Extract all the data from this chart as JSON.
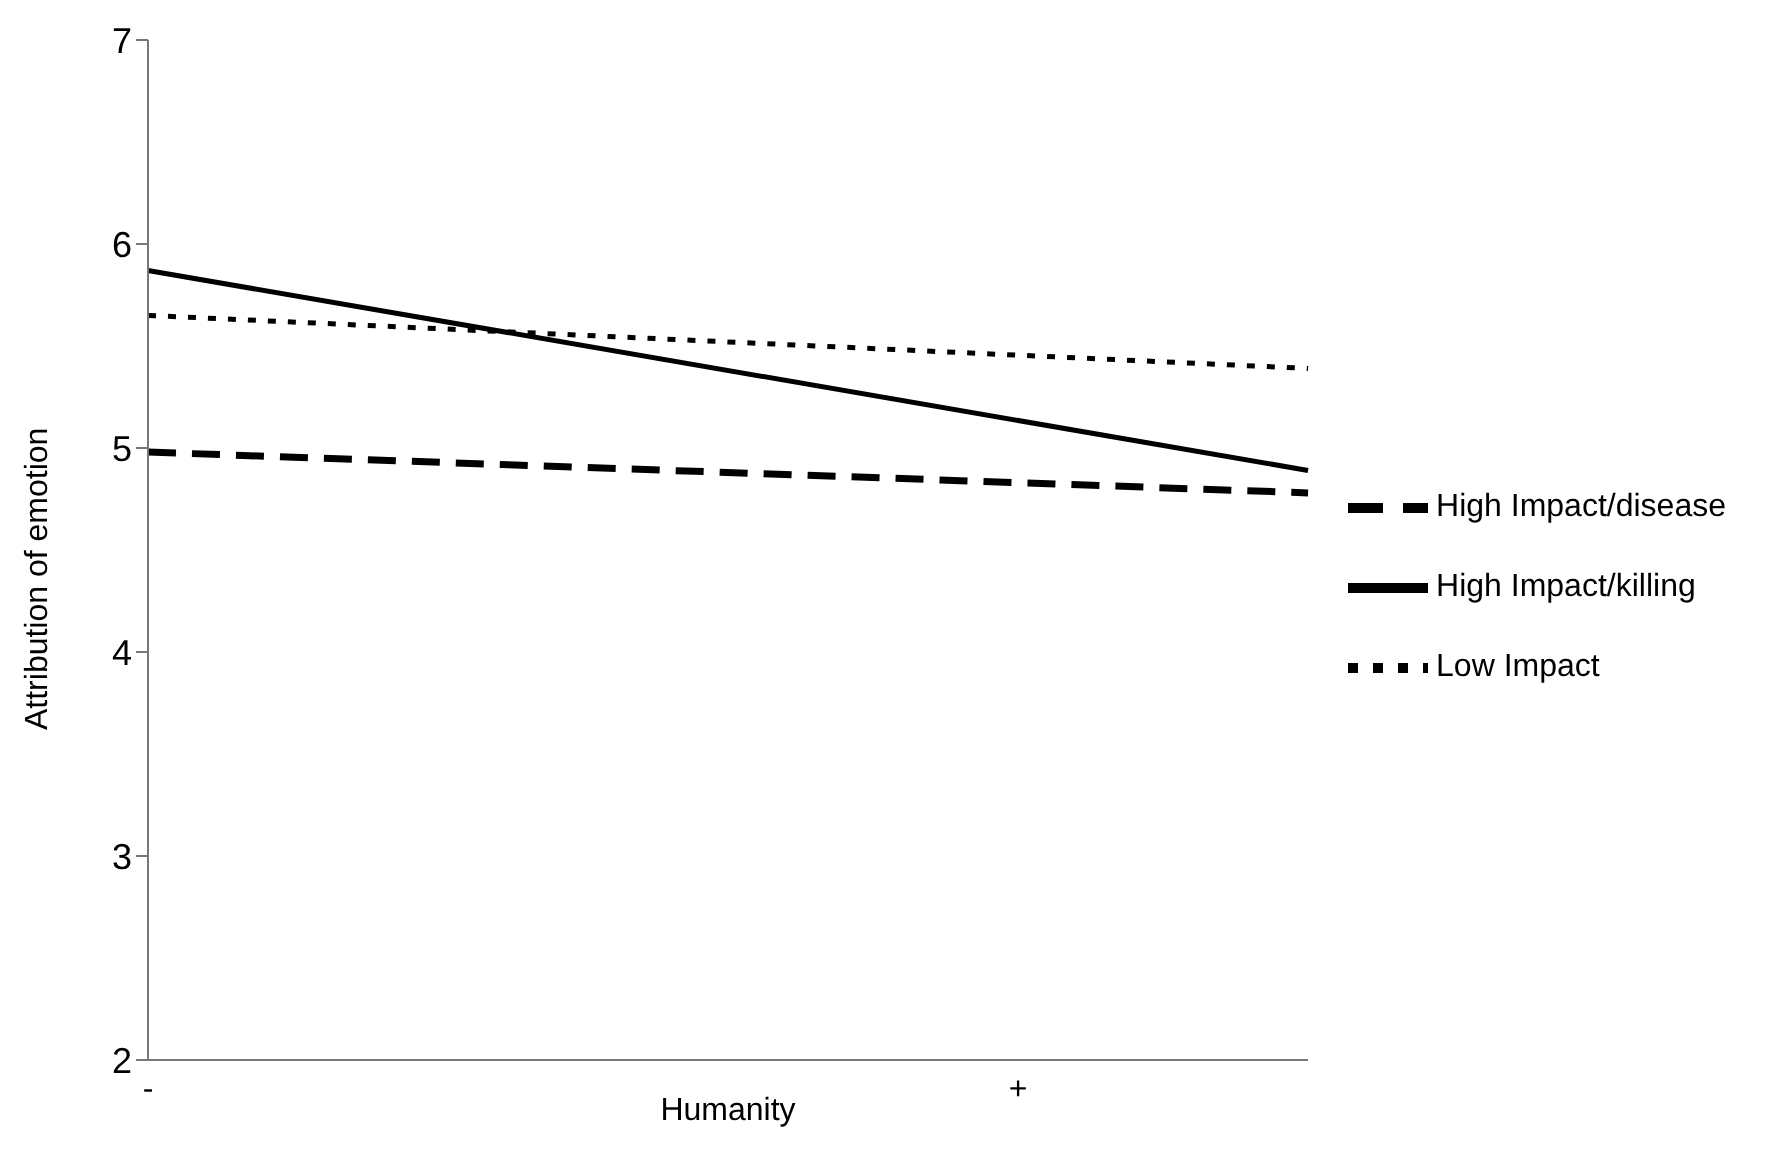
{
  "chart_data": {
    "type": "line",
    "xlabel": "Humanity",
    "ylabel": "Attribution of emotion",
    "categories": [
      "-",
      null,
      null,
      "+",
      null
    ],
    "series": [
      {
        "name": "Low Impact",
        "color": "#000000",
        "line_style": "dotted",
        "values": [
          5.65,
          null,
          null,
          null,
          5.39
        ]
      },
      {
        "name": "High Impact/disease",
        "color": "#000000",
        "line_style": "dashed",
        "values": [
          4.98,
          null,
          null,
          null,
          4.78
        ]
      },
      {
        "name": "High Impact/killing",
        "color": "#000000",
        "line_style": "solid",
        "values": [
          5.87,
          null,
          null,
          null,
          4.89
        ]
      }
    ],
    "ylim": [
      2,
      7
    ],
    "yticks": [
      2,
      3,
      4,
      5,
      6,
      7
    ],
    "grid": false,
    "legend": "right",
    "marker": "none"
  }
}
